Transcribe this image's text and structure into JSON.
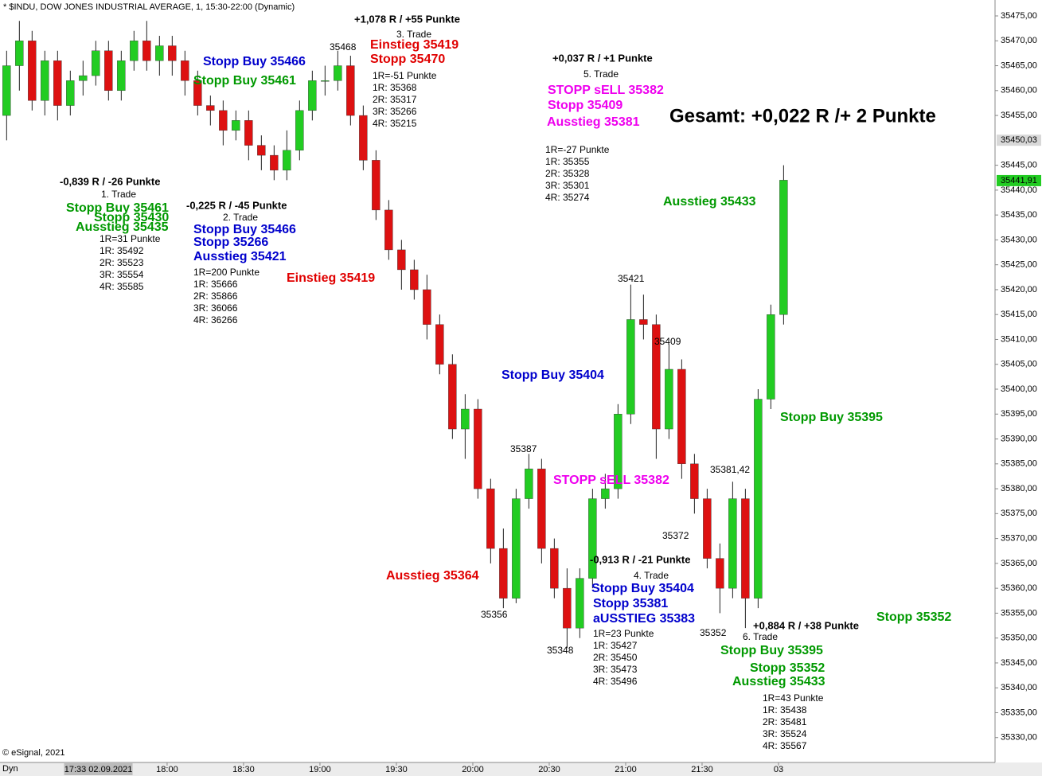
{
  "chart_data": {
    "type": "candlestick",
    "title": "* $INDU, DOW JONES INDUSTRIAL AVERAGE, 1, 15:30-22:00 (Dynamic)",
    "up_color": "#22cc22",
    "down_color": "#dd1111",
    "x": [
      1017,
      1022,
      1027,
      1032,
      1037,
      1042,
      1047,
      1052,
      1057,
      1062,
      1067,
      1072,
      1077,
      1082,
      1087,
      1092,
      1097,
      1102,
      1107,
      1112,
      1117,
      1122,
      1127,
      1132,
      1137,
      1142,
      1147,
      1152,
      1157,
      1162,
      1167,
      1172,
      1177,
      1182,
      1187,
      1192,
      1197,
      1202,
      1207,
      1212,
      1217,
      1222,
      1227,
      1232,
      1237,
      1242,
      1247,
      1252,
      1257,
      1262,
      1267,
      1272,
      1277,
      1282,
      1287,
      1292,
      1297,
      1302,
      1307,
      1312,
      1317,
      1322
    ],
    "open": [
      35455,
      35465,
      35470,
      35458,
      35466,
      35457,
      35462,
      35463,
      35468,
      35460,
      35466,
      35470,
      35466,
      35469,
      35466,
      35462,
      35457,
      35456,
      35452,
      35454,
      35449,
      35447,
      35444,
      35448,
      35456,
      35462,
      35462,
      35465,
      35455,
      35446,
      35436,
      35428,
      35424,
      35420,
      35413,
      35405,
      35392,
      35396,
      35380,
      35368,
      35358,
      35378,
      35384,
      35368,
      35360,
      35352,
      35362,
      35378,
      35380,
      35395,
      35414,
      35413,
      35392,
      35404,
      35385,
      35378,
      35366,
      35360,
      35378,
      35358,
      35398,
      35415
    ],
    "high": [
      35468,
      35474,
      35472,
      35468,
      35468,
      35464,
      35466,
      35470,
      35470,
      35468,
      35472,
      35474,
      35471,
      35471,
      35468,
      35464,
      35459,
      35458,
      35456,
      35456,
      35451,
      35449,
      35452,
      35458,
      35464,
      35465,
      35468,
      35467,
      35457,
      35448,
      35438,
      35430,
      35426,
      35423,
      35415,
      35407,
      35399,
      35398,
      35382,
      35372,
      35380,
      35387,
      35386,
      35370,
      35364,
      35364,
      35380,
      35383,
      35397,
      35421,
      35419,
      35415,
      35409,
      35406,
      35387,
      35380,
      35369,
      35381.42,
      35380,
      35400,
      35417,
      35445
    ],
    "low": [
      35450,
      35460,
      35456,
      35455,
      35454,
      35455,
      35459,
      35461,
      35458,
      35458,
      35464,
      35464,
      35463,
      35463,
      35459,
      35455,
      35453,
      35449,
      35450,
      35446,
      35444,
      35442,
      35442,
      35446,
      35454,
      35459,
      35460,
      35453,
      35444,
      35434,
      35426,
      35420,
      35418,
      35410,
      35403,
      35390,
      35386,
      35378,
      35365,
      35356,
      35357,
      35376,
      35365,
      35358,
      35348,
      35350,
      35360,
      35376,
      35378,
      35393,
      35410,
      35386,
      35390,
      35382,
      35375,
      35364,
      35355,
      35358,
      35352,
      35356,
      35396,
      35413
    ],
    "close": [
      35465,
      35470,
      35458,
      35466,
      35457,
      35462,
      35463,
      35468,
      35460,
      35466,
      35470,
      35466,
      35469,
      35466,
      35462,
      35457,
      35456,
      35452,
      35454,
      35449,
      35447,
      35444,
      35448,
      35456,
      35462,
      35462,
      35465,
      35455,
      35446,
      35436,
      35428,
      35424,
      35420,
      35413,
      35405,
      35392,
      35396,
      35380,
      35368,
      35358,
      35378,
      35384,
      35368,
      35360,
      35352,
      35362,
      35378,
      35380,
      35395,
      35414,
      35413,
      35392,
      35404,
      35385,
      35378,
      35366,
      35360,
      35378,
      35358,
      35398,
      35415,
      35442
    ],
    "xlim": [
      1014.4,
      1405
    ],
    "ylim": [
      35325,
      35478.2
    ],
    "xticks": [
      {
        "value": 1053,
        "label": "17:33 02.09.2021"
      },
      {
        "value": 1080,
        "label": "18:00"
      },
      {
        "value": 1110,
        "label": "18:30"
      },
      {
        "value": 1140,
        "label": "19:00"
      },
      {
        "value": 1170,
        "label": "19:30"
      },
      {
        "value": 1200,
        "label": "20:00"
      },
      {
        "value": 1230,
        "label": "20:30"
      },
      {
        "value": 1260,
        "label": "21:00"
      },
      {
        "value": 1290,
        "label": "21:30"
      },
      {
        "value": 1320,
        "label": "03"
      }
    ],
    "yticks": [
      {
        "value": 35330,
        "label": "35330,00"
      },
      {
        "value": 35335,
        "label": "35335,00"
      },
      {
        "value": 35340,
        "label": "35340,00"
      },
      {
        "value": 35345,
        "label": "35345,00"
      },
      {
        "value": 35350,
        "label": "35350,00"
      },
      {
        "value": 35355,
        "label": "35355,00"
      },
      {
        "value": 35360,
        "label": "35360,00"
      },
      {
        "value": 35365,
        "label": "35365,00"
      },
      {
        "value": 35370,
        "label": "35370,00"
      },
      {
        "value": 35375,
        "label": "35375,00"
      },
      {
        "value": 35380,
        "label": "35380,00"
      },
      {
        "value": 35385,
        "label": "35385,00"
      },
      {
        "value": 35390,
        "label": "35390,00"
      },
      {
        "value": 35395,
        "label": "35395,00"
      },
      {
        "value": 35400,
        "label": "35400,00"
      },
      {
        "value": 35405,
        "label": "35405,00"
      },
      {
        "value": 35410,
        "label": "35410,00"
      },
      {
        "value": 35415,
        "label": "35415,00"
      },
      {
        "value": 35420,
        "label": "35420,00"
      },
      {
        "value": 35425,
        "label": "35425,00"
      },
      {
        "value": 35430,
        "label": "35430,00"
      },
      {
        "value": 35435,
        "label": "35435,00"
      },
      {
        "value": 35440,
        "label": "35440,00"
      },
      {
        "value": 35445,
        "label": "35445,00"
      },
      {
        "value": 35455,
        "label": "35455,00"
      },
      {
        "value": 35460,
        "label": "35460,00"
      },
      {
        "value": 35465,
        "label": "35465,00"
      },
      {
        "value": 35470,
        "label": "35470,00"
      },
      {
        "value": 35475,
        "label": "35475,00"
      }
    ],
    "price_labels": [
      {
        "value": 35450.03,
        "label": "35450,03"
      },
      {
        "value": 35441.91,
        "label": "35441,91"
      }
    ],
    "annotations": [
      "+1,078 R / +55 Punkte",
      "3. Trade",
      "Einstieg 35419",
      "Stopp 35470",
      "1R=-51 Punkte",
      "1R: 35368",
      "2R: 35317",
      "3R: 35266",
      "4R: 35215",
      "35468",
      "Stopp Buy 35466",
      "Stopp Buy 35461",
      "+0,037 R / +1 Punkte",
      "5. Trade",
      "STOPP sELL 35382",
      "Stopp 35409",
      "Ausstieg 35381",
      "1R=-27 Punkte",
      "1R: 35355",
      "2R: 35328",
      "3R: 35301",
      "4R: 35274",
      "Gesamt: +0,022 R /+ 2 Punkte",
      "-0,839 R / -26 Punkte",
      "1. Trade",
      "Stopp Buy 35461",
      "Stopp 35430",
      "Ausstieg 35435",
      "1R=31 Punkte",
      "1R: 35492",
      "2R: 35523",
      "3R: 35554",
      "4R: 35585",
      "-0,225 R / -45 Punkte",
      "2. Trade",
      "Stopp Buy 35466",
      "Stopp 35266",
      "Ausstieg 35421",
      "1R=200 Punkte",
      "1R: 35666",
      "2R: 35866",
      "3R: 36066",
      "4R: 36266",
      "Einstieg 35419",
      "Ausstieg 35433",
      "35421",
      "35409",
      "Stopp Buy 35404",
      "Stopp Buy 35395",
      "35387",
      "STOPP sELL 35382",
      "35381,42",
      "35372",
      "Ausstieg 35364",
      "-0,913 R / -21 Punkte",
      "4. Trade",
      "Stopp Buy 35404",
      "Stopp 35381",
      "aUSSTIEG 35383",
      "1R=23 Punkte",
      "1R: 35427",
      "2R: 35450",
      "3R: 35473",
      "4R: 35496",
      "35356",
      "35348",
      "35352",
      "+0,884 R / +38 Punkte",
      "6. Trade",
      "Stopp 35352",
      "Stopp Buy 35395",
      "Stopp 35352",
      "Ausstieg 35433",
      "1R=43 Punkte",
      "1R: 35438",
      "2R: 35481",
      "3R: 35524",
      "4R: 35567",
      "© eSignal, 2021",
      "Dyn"
    ]
  }
}
